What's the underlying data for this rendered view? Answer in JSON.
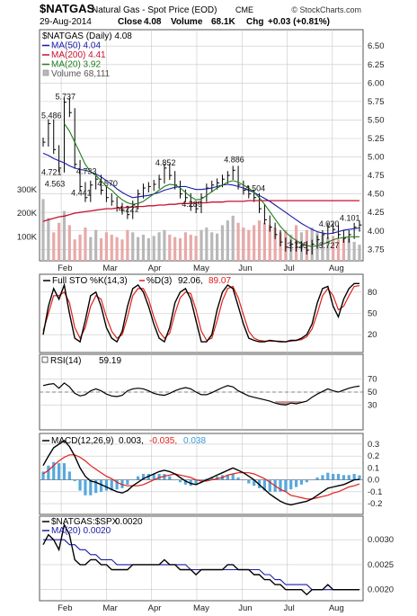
{
  "header": {
    "symbol": "$NATGAS",
    "description": "Natural Gas - Spot Price (EOD)",
    "exchange": "CME",
    "watermark": "© StockCharts.com",
    "date": "29-Aug-2014",
    "close_label": "Close",
    "close_value": "4.08",
    "volume_label": "Volume",
    "volume_value": "68.1K",
    "chg_label": "Chg",
    "chg_value": "+0.03 (+0.81%)"
  },
  "legend": {
    "main_series": "$NATGAS (Daily) 4.08",
    "ma50": "MA(50) 4.04",
    "ma200": "MA(200) 4.41",
    "ma20": "MA(20) 3.92",
    "volume": "Volume 68,111"
  },
  "colors": {
    "price": "#000000",
    "ma50": "#1a1aa8",
    "ma200": "#c8102e",
    "ma20": "#1e7d1e",
    "volume_up": "#b8b8b8",
    "volume_down": "#e8a9a9",
    "sto_k": "#000000",
    "sto_d": "#e0201a",
    "rsi": "#000000",
    "rsi_fill": "#b07a7a",
    "macd": "#000000",
    "signal": "#e0201a",
    "histogram": "#3a9ad9",
    "ratio": "#000000",
    "ratio_ma": "#1a1aa8",
    "grid": "#c8c8c8"
  },
  "chart_data": {
    "type": "line",
    "x_labels": [
      "Feb",
      "Mar",
      "Apr",
      "May",
      "Jun",
      "Jul",
      "Aug"
    ],
    "price_panel": {
      "title": "$NATGAS (Daily) 4.08",
      "y_ticks": [
        "6.50",
        "6.25",
        "6.00",
        "5.75",
        "5.50",
        "5.25",
        "5.00",
        "4.75",
        "4.50",
        "4.25",
        "4.00",
        "3.75"
      ],
      "ylim": [
        3.62,
        6.6
      ],
      "close": [
        5.2,
        5.45,
        5.1,
        4.85,
        5.74,
        5.6,
        4.9,
        4.6,
        4.45,
        4.62,
        4.7,
        4.55,
        4.45,
        4.4,
        4.32,
        4.28,
        4.22,
        4.35,
        4.5,
        4.58,
        4.6,
        4.63,
        4.7,
        4.85,
        4.75,
        4.62,
        4.5,
        4.45,
        4.33,
        4.3,
        4.45,
        4.58,
        4.62,
        4.65,
        4.7,
        4.75,
        4.82,
        4.62,
        4.55,
        4.5,
        4.45,
        4.3,
        4.15,
        4.05,
        3.95,
        3.85,
        3.78,
        3.82,
        3.78,
        3.8,
        3.74,
        3.82,
        3.88,
        3.95,
        4.05,
        4.02,
        3.95,
        3.9,
        3.95,
        4.05,
        4.08
      ],
      "ma50": [
        5.05,
        5.02,
        4.98,
        4.95,
        4.92,
        4.88,
        4.85,
        4.83,
        4.82,
        4.8,
        4.77,
        4.73,
        4.68,
        4.63,
        4.57,
        4.52,
        4.48,
        4.45,
        4.46,
        4.47,
        4.48,
        4.5,
        4.52,
        4.55,
        4.57,
        4.59,
        4.6,
        4.6,
        4.58,
        4.56,
        4.56,
        4.57,
        4.58,
        4.6,
        4.62,
        4.63,
        4.62,
        4.6,
        4.58,
        4.55,
        4.52,
        4.48,
        4.44,
        4.4,
        4.35,
        4.3,
        4.25,
        4.2,
        4.15,
        4.1,
        4.06,
        4.02,
        3.99,
        3.97,
        3.96,
        3.97,
        3.99,
        4.01,
        4.02,
        4.03,
        4.04
      ],
      "ma200": [
        4.13,
        4.15,
        4.17,
        4.19,
        4.2,
        4.22,
        4.24,
        4.25,
        4.26,
        4.27,
        4.28,
        4.29,
        4.3,
        4.3,
        4.31,
        4.31,
        4.32,
        4.32,
        4.33,
        4.33,
        4.34,
        4.34,
        4.35,
        4.35,
        4.36,
        4.36,
        4.37,
        4.37,
        4.37,
        4.38,
        4.38,
        4.38,
        4.39,
        4.39,
        4.39,
        4.4,
        4.4,
        4.4,
        4.4,
        4.41,
        4.41,
        4.41,
        4.41,
        4.41,
        4.41,
        4.41,
        4.41,
        4.41,
        4.41,
        4.41,
        4.41,
        4.41,
        4.41,
        4.41,
        4.41,
        4.41,
        4.41,
        4.41,
        4.41,
        4.41,
        4.41
      ],
      "ma20": [
        null,
        null,
        null,
        null,
        5.45,
        5.35,
        5.2,
        5.05,
        4.9,
        4.8,
        4.75,
        4.68,
        4.6,
        4.55,
        4.48,
        4.42,
        4.38,
        4.36,
        4.37,
        4.4,
        4.45,
        4.5,
        4.55,
        4.6,
        4.63,
        4.62,
        4.58,
        4.52,
        4.46,
        4.42,
        4.43,
        4.48,
        4.53,
        4.58,
        4.62,
        4.66,
        4.68,
        4.66,
        4.62,
        4.58,
        4.52,
        4.45,
        4.36,
        4.26,
        4.16,
        4.06,
        3.98,
        3.92,
        3.87,
        3.83,
        3.8,
        3.79,
        3.8,
        3.82,
        3.85,
        3.88,
        3.9,
        3.91,
        3.92,
        3.92,
        3.92
      ],
      "annotations": [
        {
          "label": "5.737",
          "x": 4,
          "y": 5.74
        },
        {
          "label": "5.486",
          "x": 1,
          "y": 5.49
        },
        {
          "label": "4.721",
          "x": 1,
          "y": 4.72
        },
        {
          "label": "4.563",
          "x": 2,
          "y": 4.56
        },
        {
          "label": "4.441",
          "x": 7,
          "y": 4.44
        },
        {
          "label": "4.733",
          "x": 8,
          "y": 4.73
        },
        {
          "label": "4.570",
          "x": 12,
          "y": 4.57
        },
        {
          "label": "4.221",
          "x": 16,
          "y": 4.22
        },
        {
          "label": "4.852",
          "x": 23,
          "y": 4.85
        },
        {
          "label": "4.289",
          "x": 28,
          "y": 4.29
        },
        {
          "label": "4.886",
          "x": 36,
          "y": 4.89
        },
        {
          "label": "4.504",
          "x": 40,
          "y": 4.5
        },
        {
          "label": "4.020",
          "x": 54,
          "y": 4.02
        },
        {
          "label": "4.101",
          "x": 59,
          "y": 4.1
        },
        {
          "label": "3.725",
          "x": 48,
          "y": 3.73
        },
        {
          "label": "3.727",
          "x": 54,
          "y": 3.73
        }
      ]
    },
    "volume_panel": {
      "y_ticks": [
        "300K",
        "200K",
        "100K"
      ],
      "ylim": [
        0,
        360
      ],
      "values": [
        260,
        180,
        120,
        160,
        210,
        150,
        90,
        110,
        140,
        100,
        130,
        95,
        120,
        110,
        100,
        90,
        130,
        120,
        100,
        110,
        95,
        105,
        120,
        130,
        110,
        100,
        95,
        120,
        110,
        105,
        130,
        140,
        120,
        115,
        150,
        170,
        190,
        160,
        140,
        130,
        150,
        170,
        160,
        150,
        140,
        120,
        130,
        110,
        150,
        120,
        130,
        140,
        120,
        110,
        100,
        105,
        90,
        100,
        95,
        80,
        68
      ]
    },
    "sto_panel": {
      "title": "Full STO %K(14,3) %D(3) 92.06, 89.07",
      "k_label": "Full STO %K(14,3)",
      "d_label": "%D(3)",
      "k_value": "92.06",
      "d_value": "89.07",
      "y_ticks": [
        "80",
        "50",
        "20"
      ],
      "ylim": [
        0,
        100
      ],
      "k": [
        20,
        60,
        85,
        70,
        90,
        50,
        15,
        10,
        40,
        75,
        80,
        60,
        30,
        15,
        10,
        25,
        60,
        85,
        90,
        80,
        60,
        35,
        15,
        10,
        30,
        65,
        80,
        85,
        70,
        40,
        10,
        10,
        20,
        55,
        80,
        90,
        85,
        60,
        35,
        15,
        12,
        10,
        10,
        12,
        11,
        10,
        10,
        12,
        12,
        15,
        20,
        35,
        65,
        85,
        88,
        60,
        45,
        70,
        85,
        92,
        92
      ],
      "d": [
        25,
        50,
        75,
        75,
        80,
        65,
        30,
        15,
        30,
        60,
        75,
        70,
        45,
        25,
        15,
        20,
        45,
        75,
        85,
        85,
        70,
        45,
        25,
        15,
        22,
        50,
        72,
        80,
        78,
        55,
        25,
        12,
        15,
        40,
        68,
        85,
        88,
        72,
        48,
        25,
        15,
        12,
        11,
        11,
        11,
        11,
        10,
        11,
        12,
        13,
        17,
        28,
        50,
        75,
        85,
        75,
        55,
        60,
        75,
        88,
        89
      ]
    },
    "rsi_panel": {
      "title": "RSI(14) 59.19",
      "series_name": "RSI(14)",
      "value": "59.19",
      "y_ticks": [
        "70",
        "50",
        "30"
      ],
      "ylim": [
        0,
        100
      ],
      "values": [
        60,
        62,
        63,
        56,
        64,
        58,
        48,
        44,
        46,
        52,
        55,
        52,
        47,
        44,
        43,
        45,
        52,
        55,
        56,
        55,
        52,
        48,
        46,
        45,
        48,
        52,
        55,
        57,
        55,
        50,
        46,
        46,
        49,
        53,
        57,
        60,
        58,
        52,
        48,
        44,
        42,
        40,
        38,
        36,
        33,
        31,
        30,
        33,
        32,
        34,
        36,
        42,
        47,
        51,
        55,
        52,
        50,
        53,
        56,
        58,
        59.19
      ]
    },
    "macd_panel": {
      "title": "MACD(12,26,9) 0.003, -0.035, 0.038",
      "series_name": "MACD(12,26,9)",
      "macd_value": "0.003",
      "signal_value": "-0.035",
      "hist_value": "0.038",
      "y_ticks": [
        "0.3",
        "0.2",
        "0.1",
        "0.0",
        "-0.1",
        "-0.2"
      ],
      "ylim": [
        -0.26,
        0.36
      ],
      "macd": [
        0.12,
        0.2,
        0.27,
        0.3,
        0.33,
        0.28,
        0.2,
        0.1,
        0.03,
        -0.01,
        -0.02,
        -0.04,
        -0.06,
        -0.08,
        -0.1,
        -0.11,
        -0.09,
        -0.05,
        -0.02,
        0.01,
        0.03,
        0.05,
        0.07,
        0.08,
        0.07,
        0.05,
        0.02,
        -0.01,
        -0.03,
        -0.04,
        -0.02,
        0.0,
        0.02,
        0.04,
        0.06,
        0.08,
        0.1,
        0.08,
        0.06,
        0.03,
        0.0,
        -0.04,
        -0.08,
        -0.12,
        -0.15,
        -0.18,
        -0.2,
        -0.21,
        -0.2,
        -0.19,
        -0.18,
        -0.16,
        -0.13,
        -0.1,
        -0.07,
        -0.06,
        -0.05,
        -0.04,
        -0.02,
        0.0,
        0.003
      ],
      "signal": [
        0.05,
        0.08,
        0.12,
        0.16,
        0.19,
        0.21,
        0.21,
        0.19,
        0.16,
        0.12,
        0.09,
        0.06,
        0.03,
        0.01,
        -0.02,
        -0.04,
        -0.05,
        -0.05,
        -0.05,
        -0.04,
        -0.02,
        0.0,
        0.02,
        0.03,
        0.04,
        0.05,
        0.04,
        0.03,
        0.02,
        0.0,
        -0.01,
        -0.01,
        0.0,
        0.01,
        0.02,
        0.04,
        0.05,
        0.06,
        0.06,
        0.06,
        0.05,
        0.03,
        0.01,
        -0.02,
        -0.05,
        -0.08,
        -0.1,
        -0.13,
        -0.14,
        -0.15,
        -0.16,
        -0.16,
        -0.15,
        -0.14,
        -0.13,
        -0.11,
        -0.1,
        -0.08,
        -0.06,
        -0.05,
        -0.035
      ]
    },
    "ratio_panel": {
      "title": "$NATGAS:$SPX 0.0020",
      "series_name": "$NATGAS:$SPX",
      "value": "0.0020",
      "ma_label": "MA(20) 0.0020",
      "y_ticks": [
        "0.0030",
        "0.0025",
        "0.0020"
      ],
      "ylim": [
        0.00185,
        0.0034
      ],
      "values": [
        0.0029,
        0.0031,
        0.003,
        0.0028,
        0.0033,
        0.0031,
        0.0026,
        0.0025,
        0.0025,
        0.0026,
        0.0026,
        0.0025,
        0.0025,
        0.0024,
        0.0024,
        0.0024,
        0.0024,
        0.0025,
        0.0025,
        0.0025,
        0.0025,
        0.0025,
        0.0025,
        0.0026,
        0.0025,
        0.0025,
        0.0024,
        0.0024,
        0.0024,
        0.0023,
        0.0024,
        0.0024,
        0.0024,
        0.0024,
        0.0024,
        0.0025,
        0.0025,
        0.0024,
        0.0024,
        0.0024,
        0.0023,
        0.0023,
        0.0022,
        0.0022,
        0.0021,
        0.0021,
        0.002,
        0.002,
        0.002,
        0.002,
        0.0019,
        0.002,
        0.002,
        0.002,
        0.0021,
        0.002,
        0.002,
        0.002,
        0.002,
        0.002,
        0.002
      ],
      "ma": [
        0.003,
        0.003,
        0.003,
        0.003,
        0.003,
        0.0029,
        0.0029,
        0.0028,
        0.0028,
        0.0027,
        0.0027,
        0.0026,
        0.0026,
        0.0026,
        0.0025,
        0.0025,
        0.0025,
        0.0025,
        0.0025,
        0.0025,
        0.0025,
        0.0025,
        0.0025,
        0.0025,
        0.0025,
        0.0025,
        0.0025,
        0.0025,
        0.0024,
        0.0024,
        0.0024,
        0.0024,
        0.0024,
        0.0024,
        0.0024,
        0.0024,
        0.0024,
        0.0024,
        0.0024,
        0.0024,
        0.0024,
        0.0024,
        0.0023,
        0.0023,
        0.0022,
        0.0022,
        0.0021,
        0.0021,
        0.0021,
        0.0021,
        0.0021,
        0.002,
        0.002,
        0.002,
        0.002,
        0.002,
        0.002,
        0.002,
        0.002,
        0.002,
        0.002
      ]
    }
  }
}
